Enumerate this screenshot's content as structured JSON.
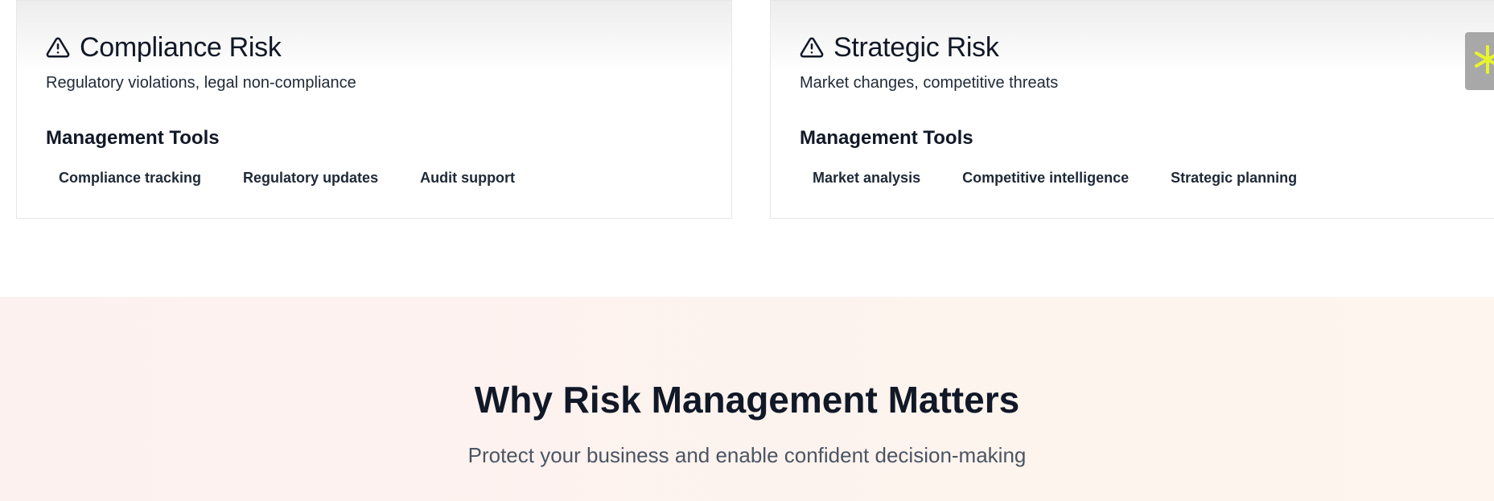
{
  "cards": [
    {
      "title": "Compliance Risk",
      "description": "Regulatory violations, legal non-compliance",
      "tools_heading": "Management Tools",
      "tools": [
        "Compliance tracking",
        "Regulatory updates",
        "Audit support"
      ],
      "icon": "warning-triangle-icon"
    },
    {
      "title": "Strategic Risk",
      "description": "Market changes, competitive threats",
      "tools_heading": "Management Tools",
      "tools": [
        "Market analysis",
        "Competitive intelligence",
        "Strategic planning"
      ],
      "icon": "warning-triangle-icon"
    }
  ],
  "side_widget": {
    "icon": "asterisk-icon",
    "icon_color": "#e6f52a",
    "background": "#a8a8a8"
  },
  "why_section": {
    "title": "Why Risk Management Matters",
    "subtitle": "Protect your business and enable confident decision-making"
  },
  "colors": {
    "text_primary": "#111827",
    "text_secondary": "#4b5563",
    "section_bg_start": "#fdf1ef",
    "section_bg_end": "#fdf5ee"
  }
}
